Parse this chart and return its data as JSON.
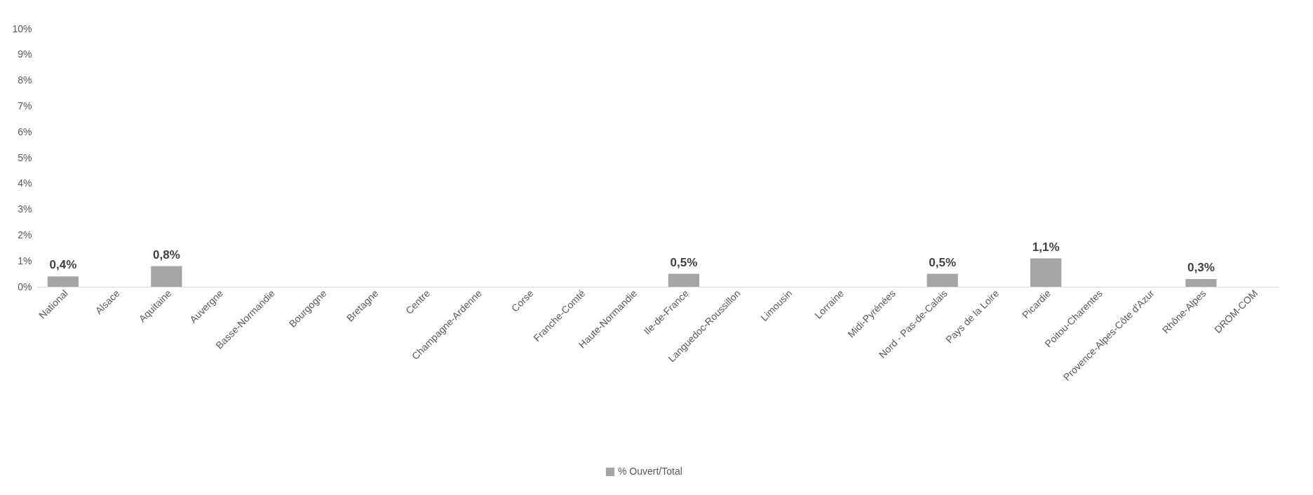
{
  "chart_data": {
    "type": "bar",
    "categories": [
      "National",
      "Alsace",
      "Aquitaine",
      "Auvergne",
      "Basse-Normandie",
      "Bourgogne",
      "Bretagne",
      "Centre",
      "Champagne-Ardenne",
      "Corse",
      "Franche-Comté",
      "Haute-Normandie",
      "Ile-de-France",
      "Languedoc-Roussillon",
      "Limousin",
      "Lorraine",
      "Midi-Pyrénées",
      "Nord - Pas-de-Calais",
      "Pays de la Loire",
      "Picardie",
      "Poitou-Charentes",
      "Provence-Alpes-Côte d'Azur",
      "Rhône-Alpes",
      "DROM-COM"
    ],
    "series": [
      {
        "name": "% Ouvert/Total",
        "color": "#a5a5a5",
        "values": [
          0.4,
          null,
          0.8,
          null,
          null,
          null,
          null,
          null,
          null,
          null,
          null,
          null,
          0.5,
          null,
          null,
          null,
          null,
          0.5,
          null,
          1.1,
          null,
          null,
          0.3,
          null
        ],
        "value_labels": [
          "0,4%",
          null,
          "0,8%",
          null,
          null,
          null,
          null,
          null,
          null,
          null,
          null,
          null,
          "0,5%",
          null,
          null,
          null,
          null,
          "0,5%",
          null,
          "1,1%",
          null,
          null,
          "0,3%",
          null
        ]
      }
    ],
    "ylim": [
      0,
      10
    ],
    "yticks": [
      {
        "value": 0,
        "label": "0%"
      },
      {
        "value": 1,
        "label": "1%"
      },
      {
        "value": 2,
        "label": "2%"
      },
      {
        "value": 3,
        "label": "3%"
      },
      {
        "value": 4,
        "label": "4%"
      },
      {
        "value": 5,
        "label": "5%"
      },
      {
        "value": 6,
        "label": "6%"
      },
      {
        "value": 7,
        "label": "7%"
      },
      {
        "value": 8,
        "label": "8%"
      },
      {
        "value": 9,
        "label": "9%"
      },
      {
        "value": 10,
        "label": "10%"
      }
    ],
    "grid": false,
    "legend": "bottom"
  }
}
